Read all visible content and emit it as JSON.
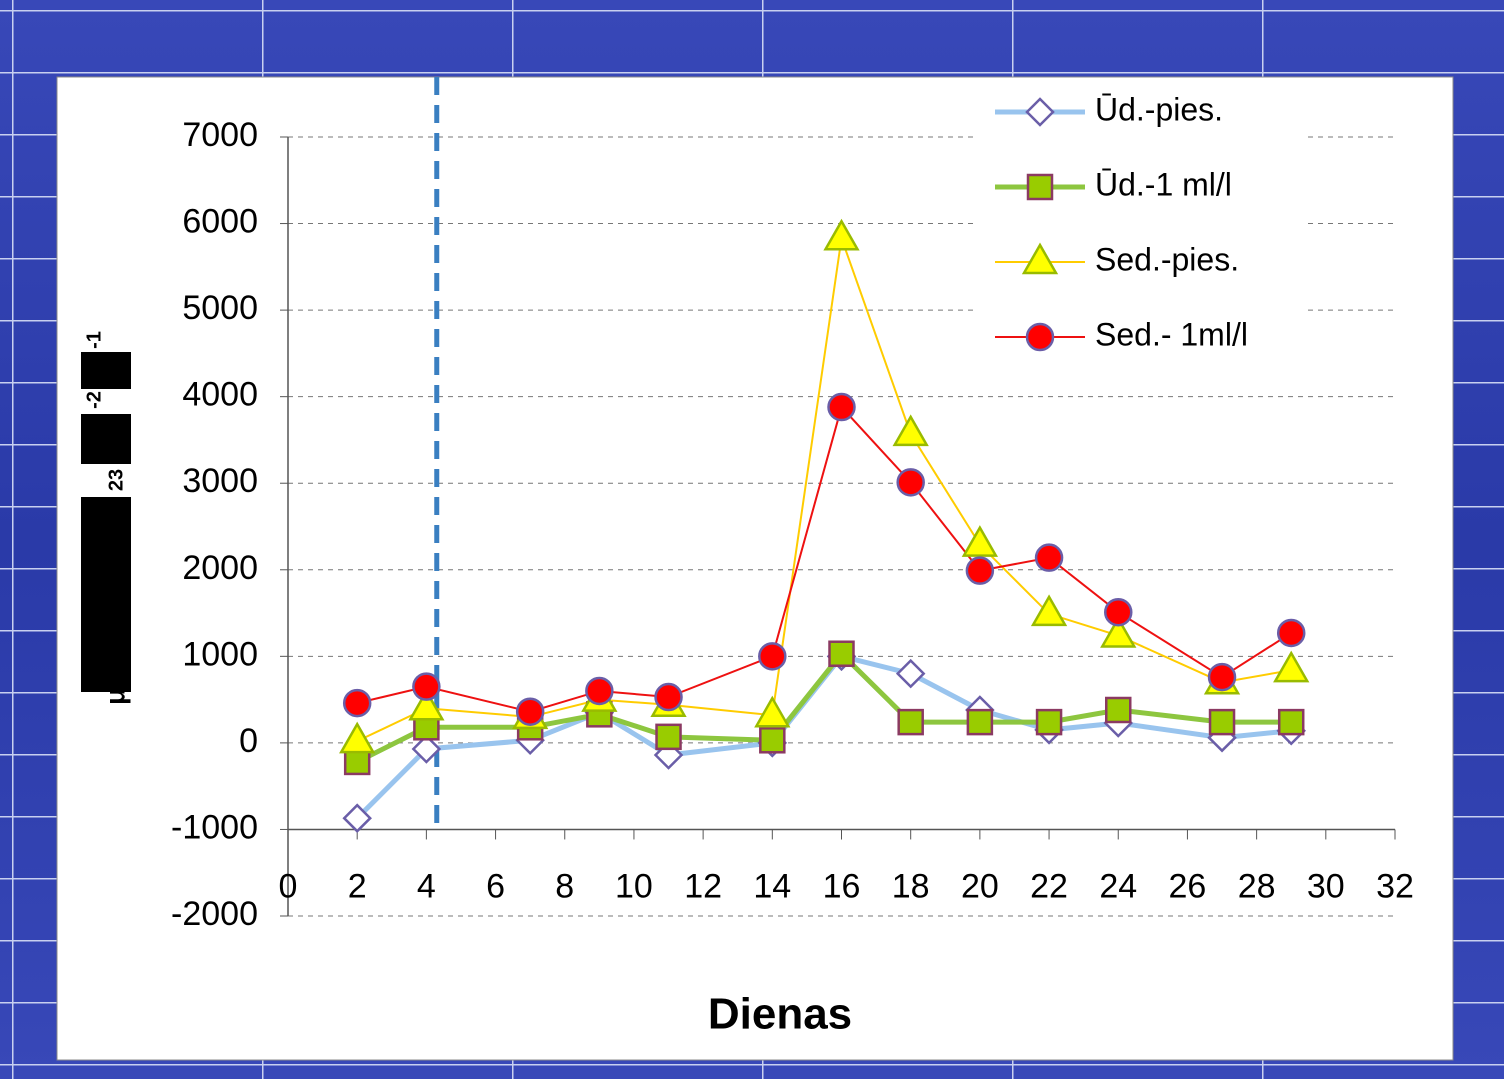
{
  "chart_data": {
    "type": "line",
    "x_label": "Dienas",
    "y_label_parts": [
      "μ",
      "23",
      "-2",
      "-1"
    ],
    "x": [
      2,
      4,
      7,
      9,
      11,
      14,
      16,
      18,
      20,
      22,
      24,
      27,
      29
    ],
    "series": [
      {
        "name": "Ūd.-pies.",
        "color": "#99c4ee",
        "marker": "diamond",
        "marker_fill": "#ffffff",
        "marker_stroke": "#6a5ea8",
        "values": [
          -870,
          -70,
          30,
          350,
          -140,
          0,
          1000,
          800,
          380,
          150,
          230,
          60,
          140
        ]
      },
      {
        "name": "Ūd.-1 ml/l",
        "color": "#8dc63f",
        "marker": "square",
        "marker_fill": "#99cc00",
        "marker_stroke": "#8b3a62",
        "values": [
          -220,
          180,
          180,
          330,
          70,
          30,
          1030,
          240,
          240,
          240,
          380,
          240,
          240
        ]
      },
      {
        "name": "Sed.-pies.",
        "color": "#ffcc00",
        "marker": "triangle",
        "marker_fill": "#ffff00",
        "marker_stroke": "#99bb00",
        "values": [
          20,
          400,
          300,
          500,
          440,
          320,
          5830,
          3570,
          2290,
          1490,
          1240,
          700,
          840
        ]
      },
      {
        "name": "Sed.- 1ml/l",
        "color": "#ee1111",
        "marker": "circle",
        "marker_fill": "#ff0000",
        "marker_stroke": "#6a5ea8",
        "values": [
          460,
          650,
          360,
          600,
          530,
          1000,
          3880,
          3010,
          1990,
          2140,
          1510,
          760,
          1270
        ]
      }
    ],
    "xlim": [
      0,
      32
    ],
    "xticks": [
      0,
      2,
      4,
      6,
      8,
      10,
      12,
      14,
      16,
      18,
      20,
      22,
      24,
      26,
      28,
      30,
      32
    ],
    "ylim": [
      -2000,
      7000
    ],
    "yticks": [
      -2000,
      -1000,
      0,
      1000,
      2000,
      3000,
      4000,
      5000,
      6000,
      7000
    ],
    "x_axis_crosses": -1000,
    "reference_line": {
      "x": 4.3,
      "color": "#3a7fc1"
    },
    "grid": true,
    "legend": "top-right"
  }
}
